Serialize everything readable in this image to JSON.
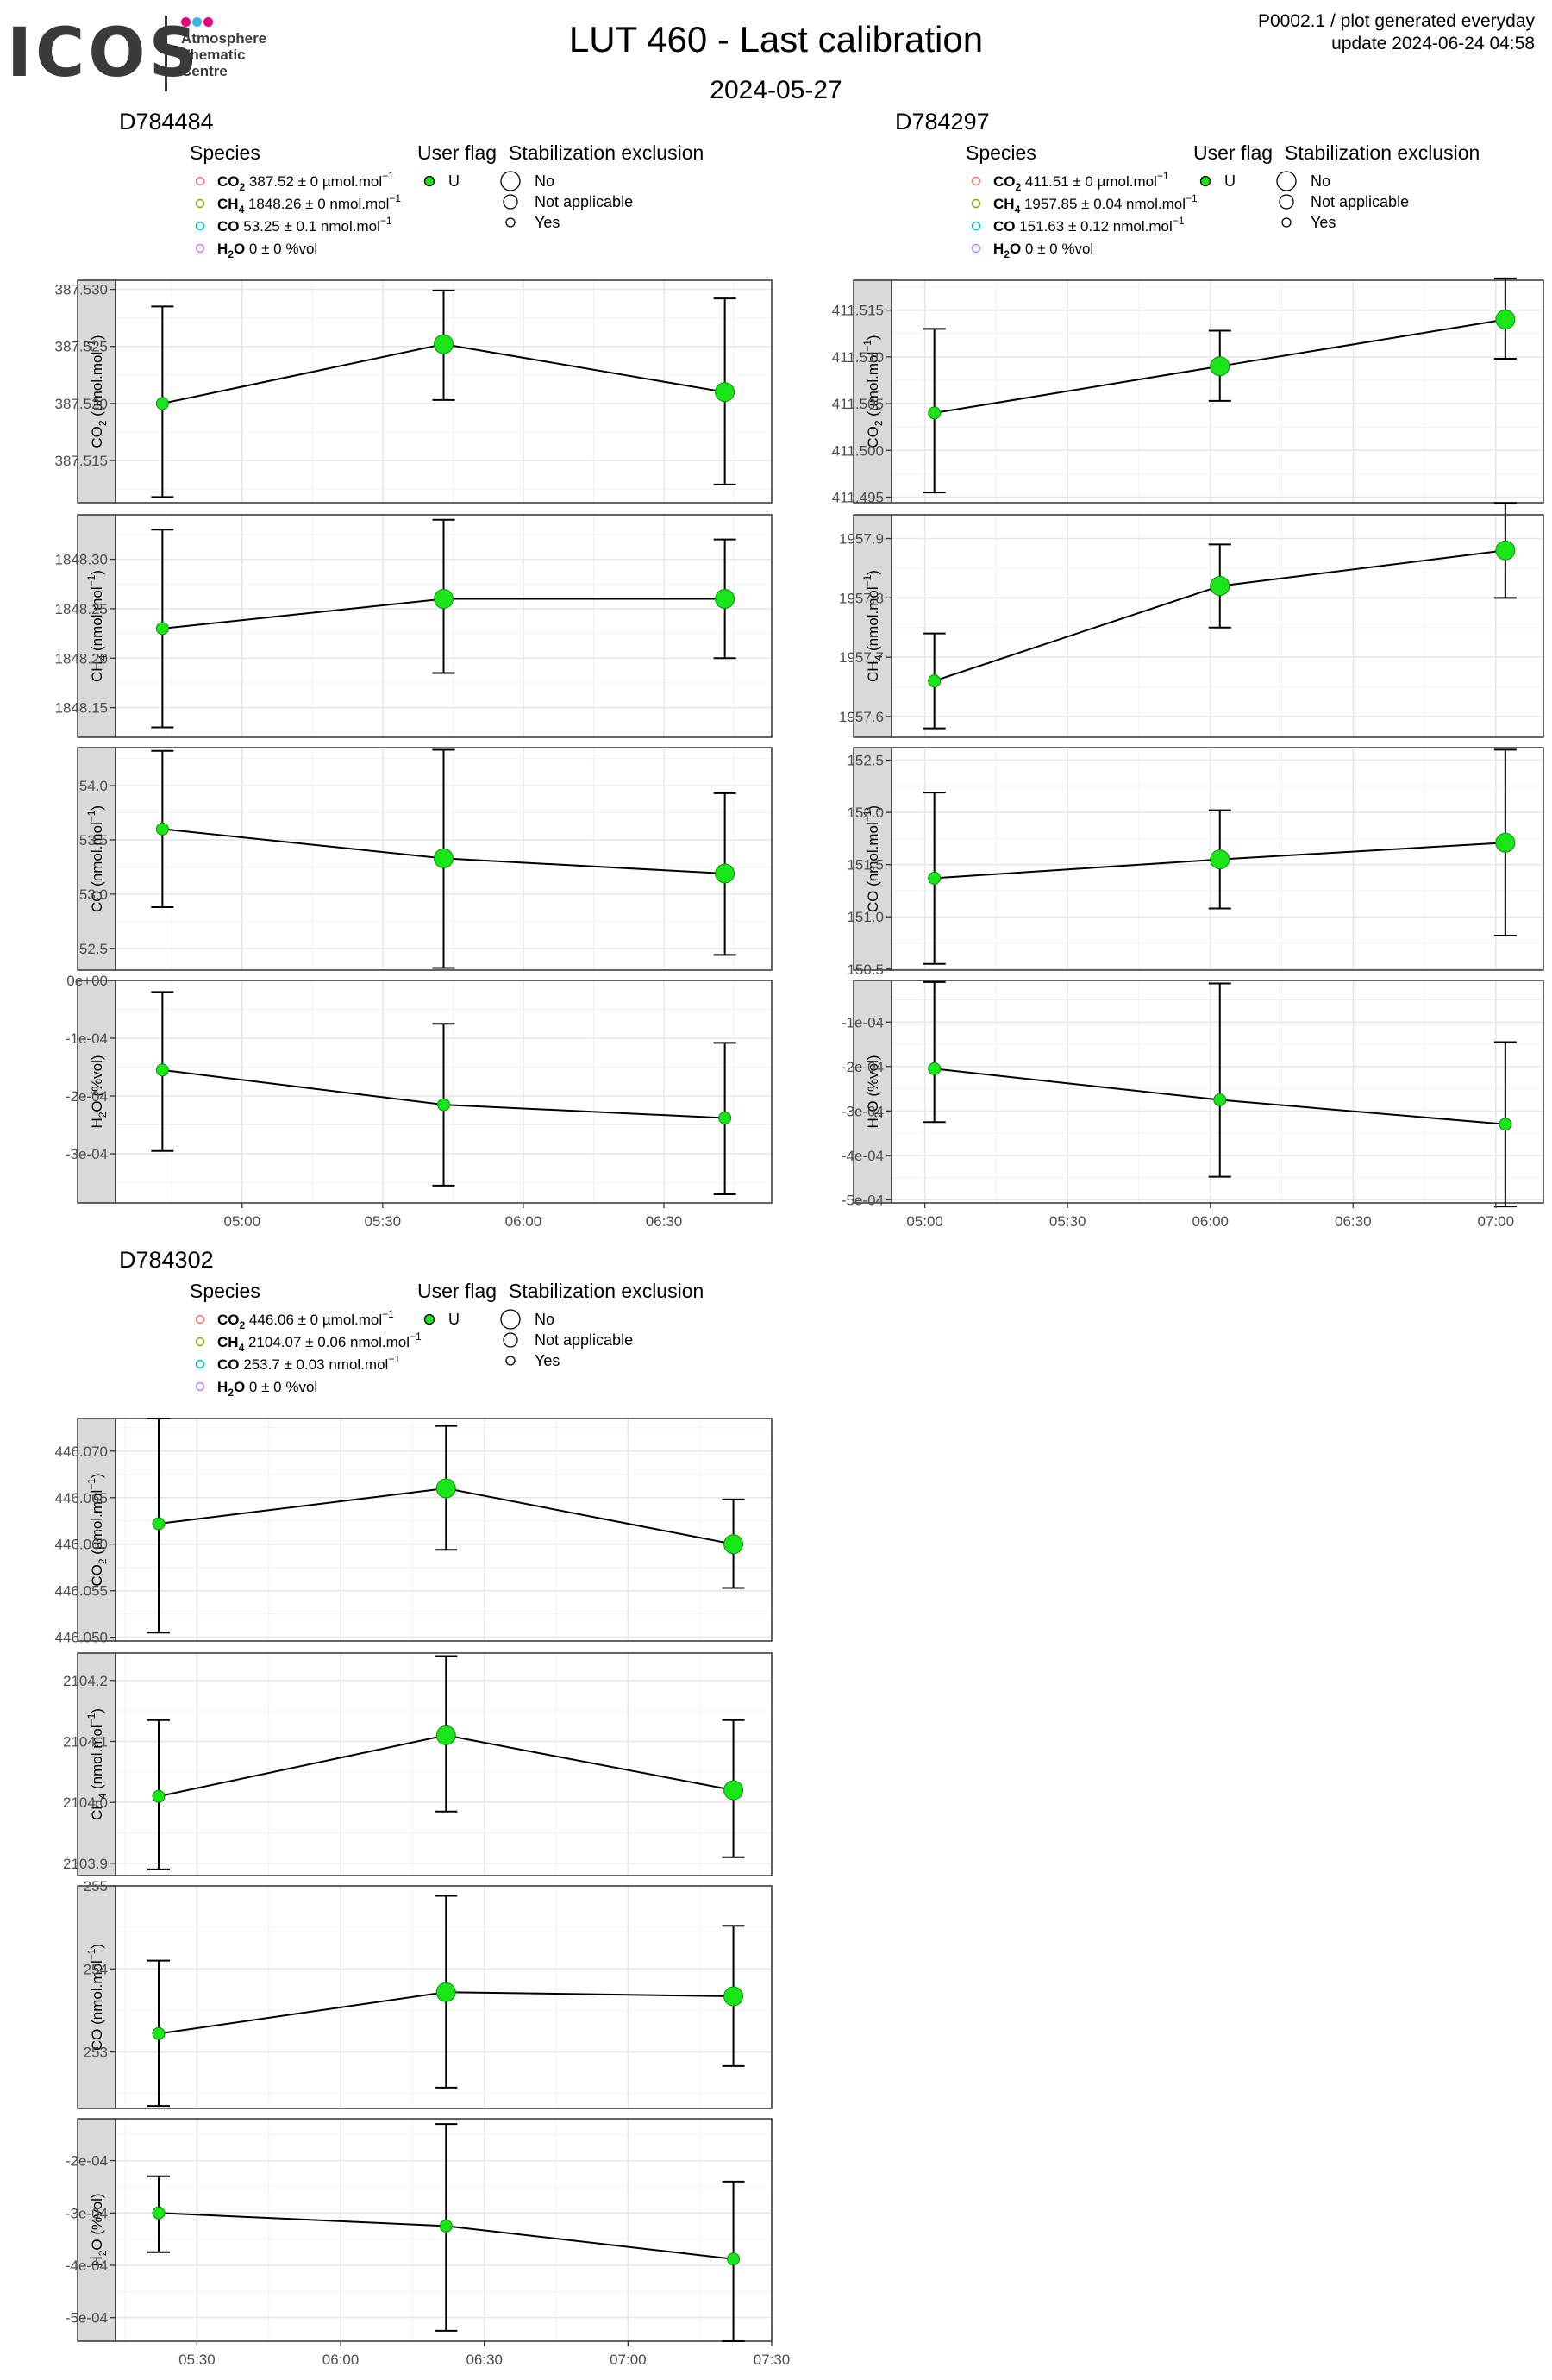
{
  "header": {
    "logo_text": "ICOS",
    "logo_subtitle": [
      "Atmosphere",
      "Thematic",
      "Centre"
    ],
    "title": "LUT 460 - Last calibration",
    "subtitle": "2024-05-27",
    "note_line1": "P0002.1 / plot generated everyday",
    "note_line2": "update  2024-06-24 04:58"
  },
  "colors": {
    "logo_dots": [
      "#e6007e",
      "#3cb4e6",
      "#e6007e"
    ],
    "point": "#19e619",
    "point_edge": "#0d8f0d",
    "panel_strip": "#d9d9d9",
    "grid_major": "#e6e6e6",
    "grid_minor": "#f2f2f2",
    "legend_species": [
      "#f8766d",
      "#7cae00",
      "#00bfc4",
      "#c77cff"
    ]
  },
  "legend_titles": {
    "species": "Species",
    "user_flag": "User flag",
    "stabilization": "Stabilization exclusion"
  },
  "legend_user_flag": [
    "U"
  ],
  "legend_stabilization": [
    "No",
    "Not applicable",
    "Yes"
  ],
  "chart_data": [
    {
      "type": "line",
      "title": "D784484",
      "legend_species": [
        {
          "chem": "CO",
          "sub": "2",
          "value": "387.52",
          "err": "0",
          "unit": "µmol.mol",
          "sup": "−1"
        },
        {
          "chem": "CH",
          "sub": "4",
          "value": "1848.26",
          "err": "0",
          "unit": "nmol.mol",
          "sup": "−1"
        },
        {
          "chem": "CO",
          "sub": "",
          "value": "53.25",
          "err": "0.1",
          "unit": "nmol.mol",
          "sup": "−1"
        },
        {
          "chem": "H",
          "sub": "2",
          "chem2": "O",
          "value": "0",
          "err": "0",
          "unit": "%vol",
          "sup": ""
        }
      ],
      "x": [
        "04:43",
        "05:43",
        "06:43"
      ],
      "x_range": [
        "04:33",
        "06:53"
      ],
      "x_ticks": [
        "05:00",
        "05:30",
        "06:00",
        "06:30"
      ],
      "panels": [
        {
          "ylabel_main": "CO",
          "ylabel_sub": "2",
          "ylabel_unit": " (µmol.mol",
          "ylabel_sup": "−1",
          "ylabel_end": ")",
          "ylim": [
            387.5113,
            387.5308
          ],
          "yticks": [
            "387.515",
            "387.520",
            "387.525",
            "387.530"
          ],
          "values": [
            387.52,
            387.5252,
            387.521
          ],
          "err_low": [
            387.5118,
            387.5203,
            387.5129
          ],
          "err_high": [
            387.5285,
            387.5299,
            387.5292
          ],
          "sizes": [
            "Yes",
            "No",
            "No"
          ]
        },
        {
          "ylabel_main": "CH",
          "ylabel_sub": "4",
          "ylabel_unit": " (nmol.mol",
          "ylabel_sup": "−1",
          "ylabel_end": ")",
          "ylim": [
            1848.12,
            1848.345
          ],
          "yticks": [
            "1848.15",
            "1848.20",
            "1848.25",
            "1848.30"
          ],
          "values": [
            1848.23,
            1848.26,
            1848.26
          ],
          "err_low": [
            1848.13,
            1848.185,
            1848.2
          ],
          "err_high": [
            1848.33,
            1848.34,
            1848.32
          ],
          "sizes": [
            "Yes",
            "No",
            "No"
          ]
        },
        {
          "ylabel_main": "CO",
          "ylabel_sub": "",
          "ylabel_unit": " (nmol.mol",
          "ylabel_sup": "−1",
          "ylabel_end": ")",
          "ylim": [
            52.3,
            54.35
          ],
          "yticks": [
            "52.5",
            "53.0",
            "53.5",
            "54.0"
          ],
          "values": [
            53.6,
            53.33,
            53.19
          ],
          "err_low": [
            52.88,
            52.32,
            52.44
          ],
          "err_high": [
            54.32,
            54.33,
            53.93
          ],
          "sizes": [
            "Yes",
            "No",
            "No"
          ]
        },
        {
          "ylabel_main": "H",
          "ylabel_sub": "2",
          "ylabel_unit": "O (%vol",
          "ylabel_sup": "",
          "ylabel_end": ")",
          "ylim": [
            -0.000385,
            0.0
          ],
          "yticks": [
            "-3e-04",
            "-2e-04",
            "-1e-04",
            "0e+00"
          ],
          "values": [
            -0.000155,
            -0.000215,
            -0.000238
          ],
          "err_low": [
            -0.000295,
            -0.000355,
            -0.00037
          ],
          "err_high": [
            -2e-05,
            -7.5e-05,
            -0.000108
          ],
          "sizes": [
            "Yes",
            "Yes",
            "Yes"
          ]
        }
      ]
    },
    {
      "type": "line",
      "title": "D784297",
      "legend_species": [
        {
          "chem": "CO",
          "sub": "2",
          "value": "411.51",
          "err": "0",
          "unit": "µmol.mol",
          "sup": "−1"
        },
        {
          "chem": "CH",
          "sub": "4",
          "value": "1957.85",
          "err": "0.04",
          "unit": "nmol.mol",
          "sup": "−1"
        },
        {
          "chem": "CO",
          "sub": "",
          "value": "151.63",
          "err": "0.12",
          "unit": "nmol.mol",
          "sup": "−1"
        },
        {
          "chem": "H",
          "sub": "2",
          "chem2": "O",
          "value": "0",
          "err": "0",
          "unit": "%vol",
          "sup": ""
        }
      ],
      "x": [
        "05:02",
        "06:02",
        "07:02"
      ],
      "x_range": [
        "04:53",
        "07:10"
      ],
      "x_ticks": [
        "05:00",
        "05:30",
        "06:00",
        "06:30",
        "07:00"
      ],
      "panels": [
        {
          "ylabel_main": "CO",
          "ylabel_sub": "2",
          "ylabel_unit": " (µmol.mol",
          "ylabel_sup": "−1",
          "ylabel_end": ")",
          "ylim": [
            411.4944,
            411.5182
          ],
          "yticks": [
            "411.495",
            "411.500",
            "411.505",
            "411.510",
            "411.515"
          ],
          "values": [
            411.504,
            411.509,
            411.514
          ],
          "err_low": [
            411.4955,
            411.5053,
            411.5098
          ],
          "err_high": [
            411.513,
            411.5128,
            411.5184
          ],
          "sizes": [
            "Yes",
            "No",
            "No"
          ]
        },
        {
          "ylabel_main": "CH",
          "ylabel_sub": "4",
          "ylabel_unit": " (nmol.mol",
          "ylabel_sup": "−1",
          "ylabel_end": ")",
          "ylim": [
            1957.565,
            1957.94
          ],
          "yticks": [
            "1957.6",
            "1957.7",
            "1957.8",
            "1957.9"
          ],
          "values": [
            1957.66,
            1957.82,
            1957.88
          ],
          "err_low": [
            1957.58,
            1957.75,
            1957.8
          ],
          "err_high": [
            1957.74,
            1957.89,
            1957.96
          ],
          "sizes": [
            "Yes",
            "No",
            "No"
          ]
        },
        {
          "ylabel_main": "CO",
          "ylabel_sub": "",
          "ylabel_unit": " (nmol.mol",
          "ylabel_sup": "−1",
          "ylabel_end": ")",
          "ylim": [
            150.49,
            152.62
          ],
          "yticks": [
            "150.5",
            "151.0",
            "151.5",
            "152.0",
            "152.5"
          ],
          "values": [
            151.37,
            151.55,
            151.71
          ],
          "err_low": [
            150.55,
            151.08,
            150.82
          ],
          "err_high": [
            152.19,
            152.02,
            152.6
          ],
          "sizes": [
            "Yes",
            "No",
            "No"
          ]
        },
        {
          "ylabel_main": "H",
          "ylabel_sub": "2",
          "ylabel_unit": "O (%vol",
          "ylabel_sup": "",
          "ylabel_end": ")",
          "ylim": [
            -0.000507,
            -6.3e-06
          ],
          "yticks": [
            "-5e-04",
            "-4e-04",
            "-3e-04",
            "-2e-04",
            "-1e-04"
          ],
          "values": [
            -0.000205,
            -0.000275,
            -0.00033
          ],
          "err_low": [
            -0.000325,
            -0.000448,
            -0.000515
          ],
          "err_high": [
            -1e-05,
            -1.3e-05,
            -0.000145
          ],
          "sizes": [
            "Yes",
            "Yes",
            "Yes"
          ]
        }
      ]
    },
    {
      "type": "line",
      "title": "D784302",
      "legend_species": [
        {
          "chem": "CO",
          "sub": "2",
          "value": "446.06",
          "err": "0",
          "unit": "µmol.mol",
          "sup": "−1"
        },
        {
          "chem": "CH",
          "sub": "4",
          "value": "2104.07",
          "err": "0.06",
          "unit": "nmol.mol",
          "sup": "−1"
        },
        {
          "chem": "CO",
          "sub": "",
          "value": "253.7",
          "err": "0.03",
          "unit": "nmol.mol",
          "sup": "−1"
        },
        {
          "chem": "H",
          "sub": "2",
          "chem2": "O",
          "value": "0",
          "err": "0",
          "unit": "%vol",
          "sup": ""
        }
      ],
      "x": [
        "05:22",
        "06:22",
        "07:22"
      ],
      "x_range": [
        "05:13",
        "07:30"
      ],
      "x_ticks": [
        "05:30",
        "06:00",
        "06:30",
        "07:00",
        "07:30"
      ],
      "panels": [
        {
          "ylabel_main": "CO",
          "ylabel_sub": "2",
          "ylabel_unit": " (µmol.mol",
          "ylabel_sup": "−1",
          "ylabel_end": ")",
          "ylim": [
            446.0496,
            446.0735
          ],
          "yticks": [
            "446.050",
            "446.055",
            "446.060",
            "446.065",
            "446.070"
          ],
          "values": [
            446.0622,
            446.066,
            446.06
          ],
          "err_low": [
            446.0505,
            446.0594,
            446.0553
          ],
          "err_high": [
            446.0735,
            446.0727,
            446.0648
          ],
          "sizes": [
            "Yes",
            "No",
            "No"
          ]
        },
        {
          "ylabel_main": "CH",
          "ylabel_sub": "4",
          "ylabel_unit": " (nmol.mol",
          "ylabel_sup": "−1",
          "ylabel_end": ")",
          "ylim": [
            2103.88,
            2104.245
          ],
          "yticks": [
            "2103.9",
            "2104.0",
            "2104.1",
            "2104.2"
          ],
          "values": [
            2104.01,
            2104.11,
            2104.02
          ],
          "err_low": [
            2103.89,
            2103.985,
            2103.91
          ],
          "err_high": [
            2104.135,
            2104.24,
            2104.135
          ],
          "sizes": [
            "Yes",
            "No",
            "No"
          ]
        },
        {
          "ylabel_main": "CO",
          "ylabel_sub": "",
          "ylabel_unit": " (nmol.mol",
          "ylabel_sup": "−1",
          "ylabel_end": ")",
          "ylim": [
            252.32,
            255.0
          ],
          "yticks": [
            "253",
            "254",
            "255"
          ],
          "values": [
            253.22,
            253.72,
            253.67
          ],
          "err_low": [
            252.35,
            252.57,
            252.83
          ],
          "err_high": [
            254.1,
            254.88,
            254.52
          ],
          "sizes": [
            "Yes",
            "No",
            "No"
          ]
        },
        {
          "ylabel_main": "H",
          "ylabel_sub": "2",
          "ylabel_unit": "O (%vol",
          "ylabel_sup": "",
          "ylabel_end": ")",
          "ylim": [
            -0.000545,
            -0.00012
          ],
          "yticks": [
            "-5e-04",
            "-4e-04",
            "-3e-04",
            "-2e-04"
          ],
          "values": [
            -0.0003,
            -0.000325,
            -0.000388
          ],
          "err_low": [
            -0.000375,
            -0.000525,
            -0.000545
          ],
          "err_high": [
            -0.00023,
            -0.00013,
            -0.00024
          ],
          "sizes": [
            "Yes",
            "Yes",
            "Yes"
          ]
        }
      ]
    }
  ]
}
